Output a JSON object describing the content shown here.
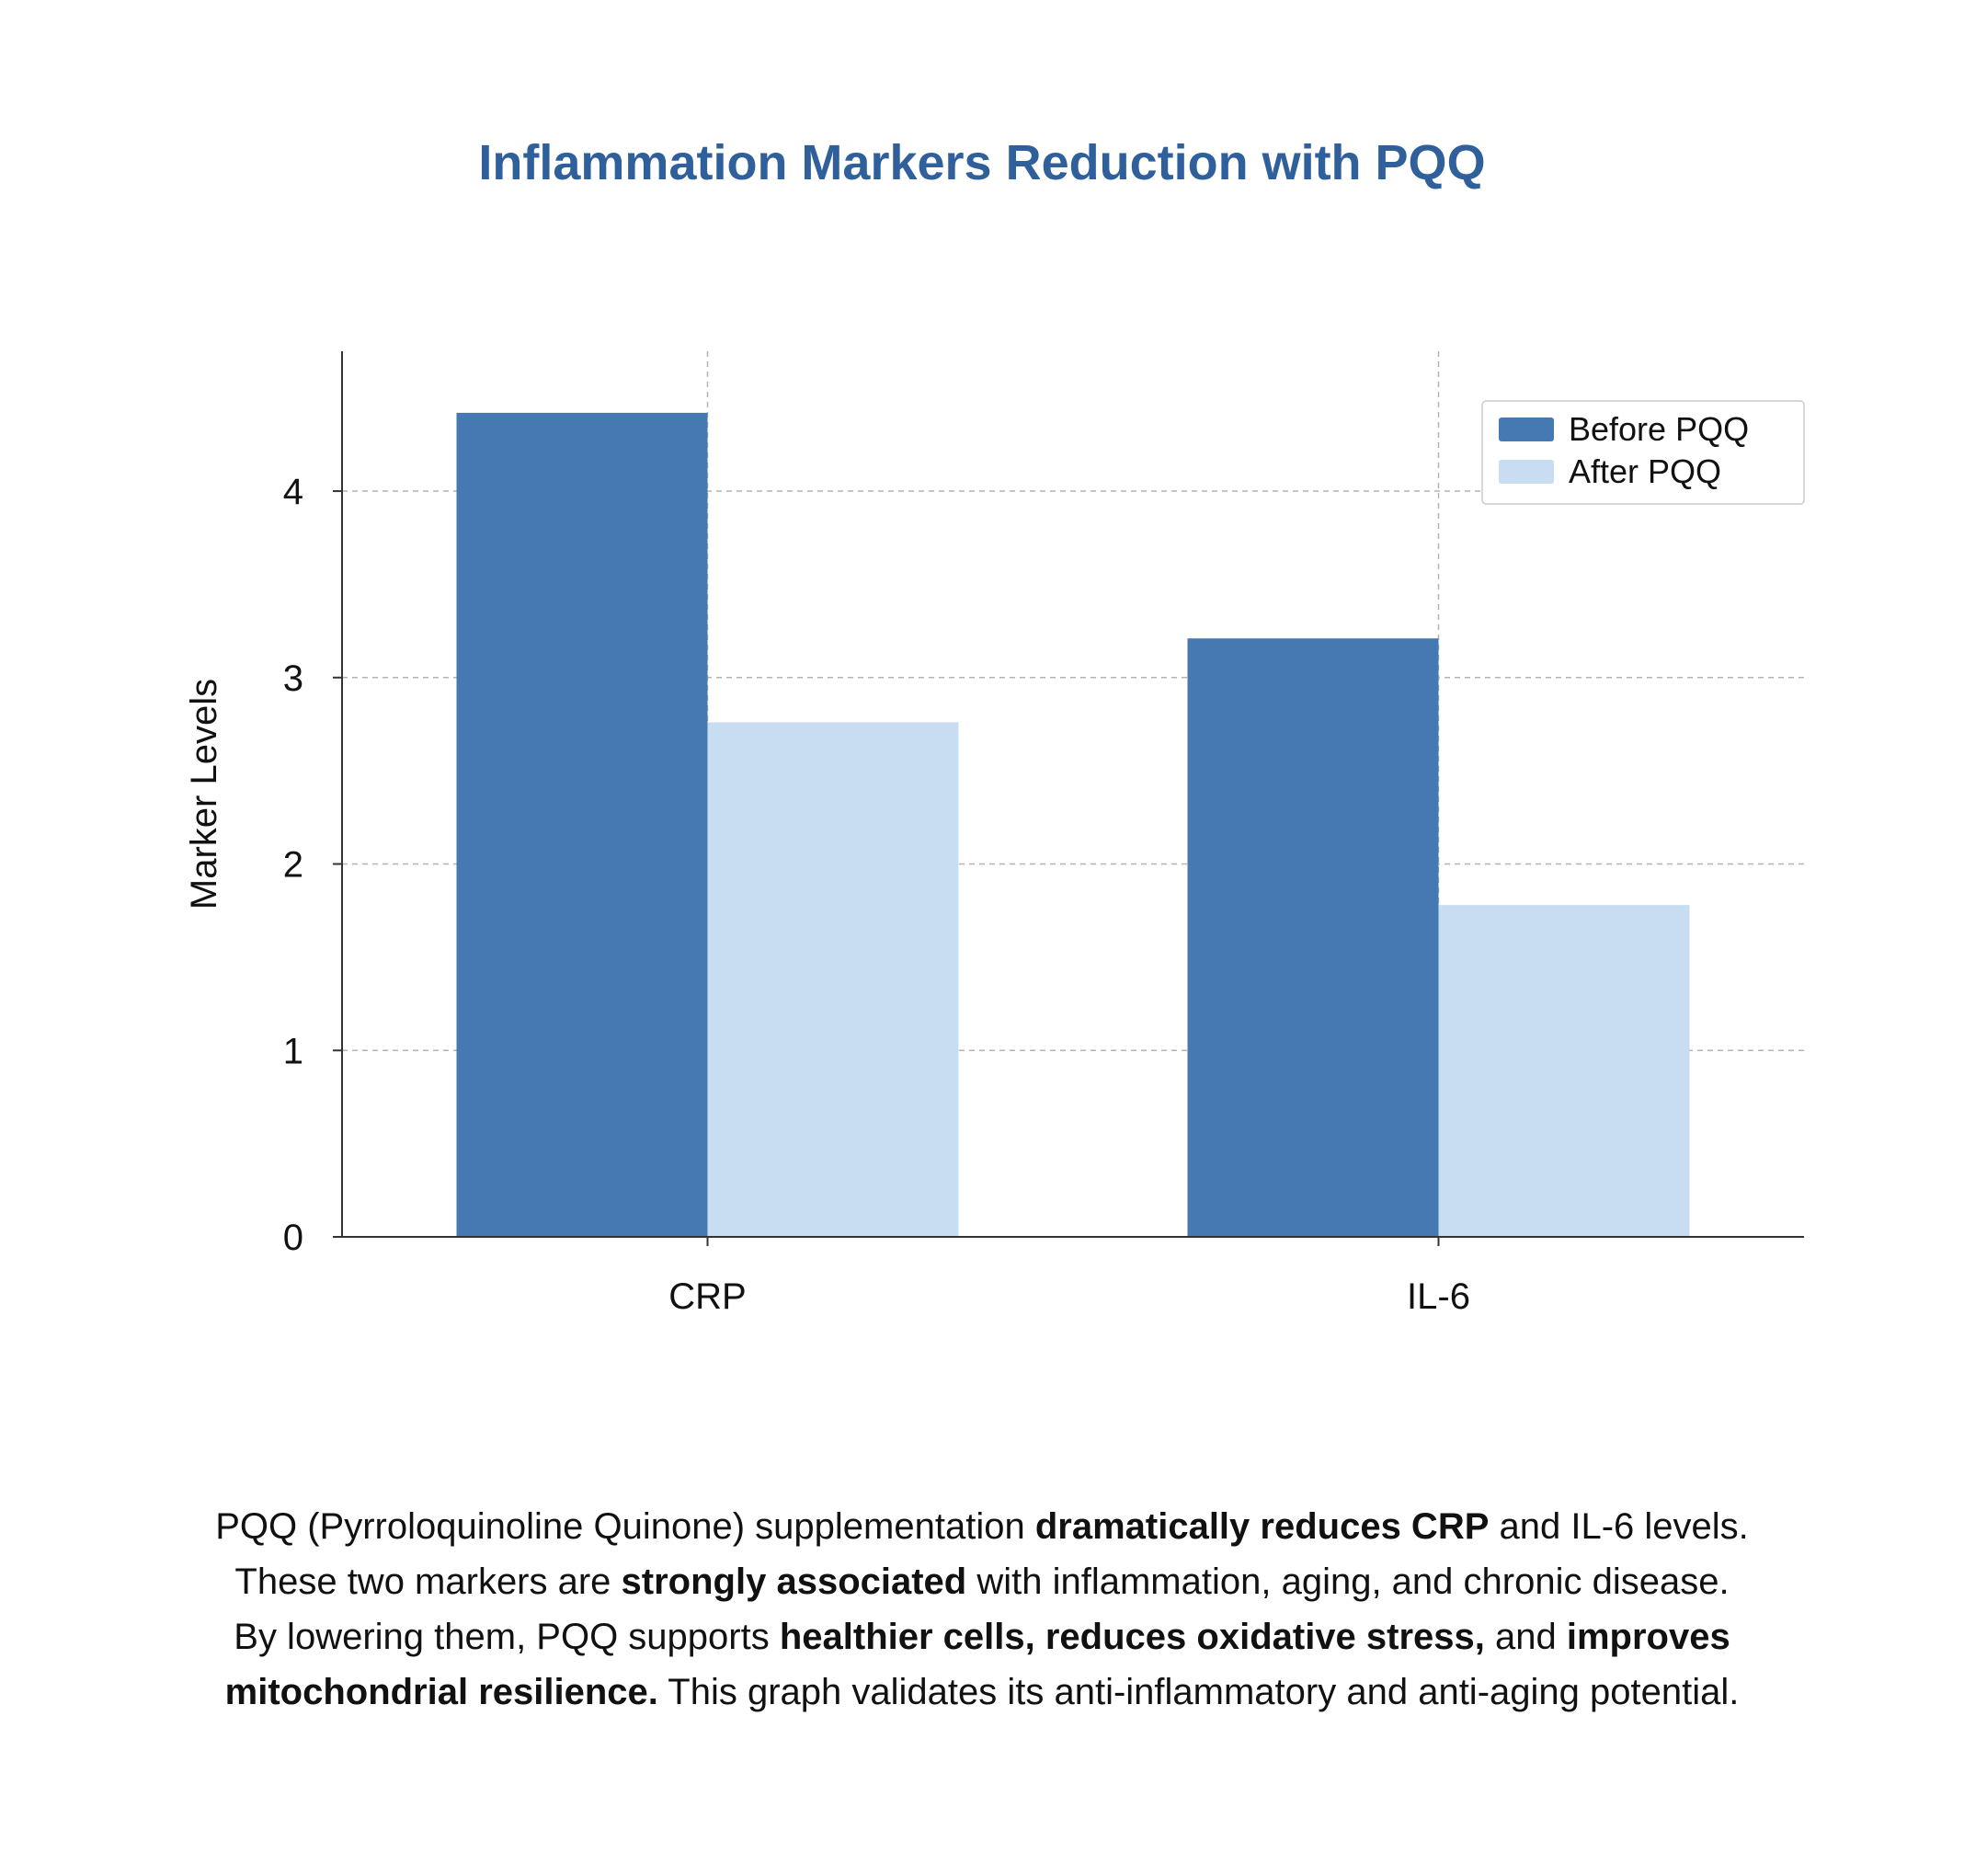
{
  "chart_data": {
    "type": "bar",
    "title": "Inflammation Markers Reduction with PQQ",
    "xlabel": "",
    "ylabel": "Marker Levels",
    "categories": [
      "CRP",
      "IL-6"
    ],
    "series": [
      {
        "name": "Before PQQ",
        "values": [
          4.42,
          3.21
        ],
        "color": "#4679b2"
      },
      {
        "name": "After PQQ",
        "values": [
          2.76,
          1.78
        ],
        "color": "#c8ddf2"
      }
    ],
    "ylim": [
      0,
      4.75
    ],
    "yticks": [
      "0",
      "1",
      "2",
      "3",
      "4"
    ],
    "grid": true,
    "legend_position": "top-right"
  },
  "caption": {
    "l1_a": "PQQ (Pyrroloquinoline Quinone) supplementation ",
    "l1_b": "dramatically reduces CRP",
    "l1_c": " and IL-6 levels.",
    "l2_a": "These two markers are ",
    "l2_b": "strongly associated",
    "l2_c": " with inflammation, aging, and chronic disease.",
    "l3_a": "By lowering them, PQQ supports ",
    "l3_b": "healthier cells, reduces oxidative stress,",
    "l3_c": " and ",
    "l3_d": "improves",
    "l4_a": "mitochondrial resilience.",
    "l4_b": " This graph validates its anti-inflammatory and anti-aging potential."
  }
}
